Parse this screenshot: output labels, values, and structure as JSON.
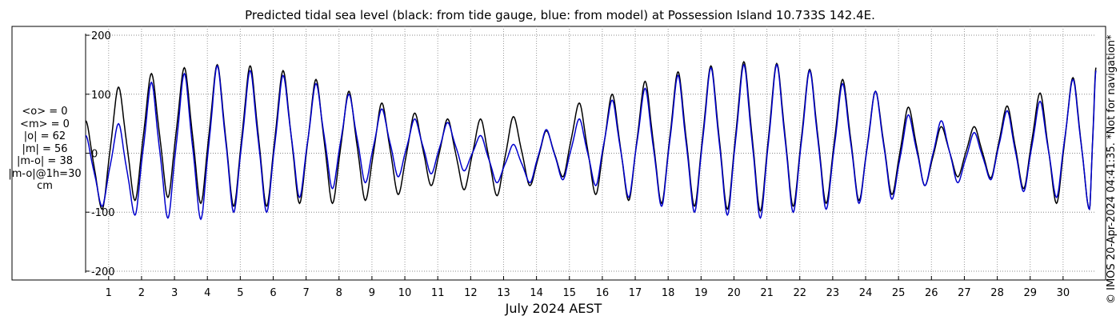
{
  "chart_data": {
    "type": "line",
    "title": "Predicted tidal sea level (black: from tide gauge, blue: from model) at Possession Island 10.733S 142.4E.",
    "xlabel": "July 2024 AEST",
    "ylabel": "",
    "unit": "cm",
    "xlim": [
      0.3,
      31.0
    ],
    "ylim": [
      -215,
      215
    ],
    "y_ticks": [
      -200,
      -100,
      0,
      100,
      200
    ],
    "x_ticks": [
      1,
      2,
      3,
      4,
      5,
      6,
      7,
      8,
      9,
      10,
      11,
      12,
      13,
      14,
      15,
      16,
      17,
      18,
      19,
      20,
      21,
      22,
      23,
      24,
      25,
      26,
      27,
      28,
      29,
      30
    ],
    "grid": true,
    "legend": "none",
    "statistics": [
      "<o> = 0",
      "<m> = 0",
      "|o| = 62",
      "|m| = 56",
      "|m-o| = 38",
      "|m-o|@1h=30",
      "cm"
    ],
    "series": [
      {
        "color": "#000000",
        "x": [
          0.3,
          0.8,
          1.3,
          1.8,
          2.3,
          2.8,
          3.3,
          3.8,
          4.3,
          4.8,
          5.3,
          5.8,
          6.3,
          6.8,
          7.3,
          7.8,
          8.3,
          8.8,
          9.3,
          9.8,
          10.3,
          10.8,
          11.3,
          11.8,
          12.3,
          12.8,
          13.3,
          13.8,
          14.3,
          14.8,
          15.3,
          15.8,
          16.3,
          16.8,
          17.3,
          17.8,
          18.3,
          18.8,
          19.3,
          19.8,
          20.3,
          20.8,
          21.3,
          21.8,
          22.3,
          22.8,
          23.3,
          23.8,
          24.3,
          24.8,
          25.3,
          25.8,
          26.3,
          26.8,
          27.3,
          27.8,
          28.3,
          28.8,
          29.3,
          29.8,
          30.3,
          30.8,
          31.0
        ],
        "y": [
          55,
          -95,
          112,
          -80,
          135,
          -75,
          145,
          -85,
          150,
          -90,
          148,
          -90,
          140,
          -85,
          125,
          -85,
          105,
          -80,
          85,
          -70,
          68,
          -55,
          58,
          -62,
          58,
          -72,
          62,
          -55,
          38,
          -40,
          85,
          -70,
          100,
          -80,
          122,
          -85,
          138,
          -90,
          148,
          -95,
          155,
          -98,
          152,
          -90,
          142,
          -85,
          125,
          -80,
          105,
          -70,
          78,
          -55,
          45,
          -40,
          45,
          -42,
          80,
          -60,
          102,
          -85,
          128,
          -95,
          145
        ]
      },
      {
        "color": "#0000cc",
        "x": [
          0.3,
          0.8,
          1.3,
          1.8,
          2.3,
          2.8,
          3.3,
          3.8,
          4.3,
          4.8,
          5.3,
          5.8,
          6.3,
          6.8,
          7.3,
          7.8,
          8.3,
          8.8,
          9.3,
          9.8,
          10.3,
          10.8,
          11.3,
          11.8,
          12.3,
          12.8,
          13.3,
          13.8,
          14.3,
          14.8,
          15.3,
          15.8,
          16.3,
          16.8,
          17.3,
          17.8,
          18.3,
          18.8,
          19.3,
          19.8,
          20.3,
          20.8,
          21.3,
          21.8,
          22.3,
          22.8,
          23.3,
          23.8,
          24.3,
          24.8,
          25.3,
          25.8,
          26.3,
          26.8,
          27.3,
          27.8,
          28.3,
          28.8,
          29.3,
          29.8,
          30.3,
          30.8,
          31.0
        ],
        "y": [
          30,
          -90,
          50,
          -105,
          120,
          -110,
          135,
          -112,
          148,
          -100,
          140,
          -100,
          132,
          -75,
          118,
          -60,
          100,
          -50,
          75,
          -40,
          58,
          -35,
          52,
          -30,
          30,
          -50,
          15,
          -50,
          40,
          -45,
          58,
          -55,
          90,
          -75,
          110,
          -90,
          132,
          -100,
          145,
          -105,
          150,
          -110,
          150,
          -100,
          140,
          -95,
          118,
          -85,
          105,
          -78,
          65,
          -55,
          55,
          -50,
          35,
          -45,
          72,
          -65,
          88,
          -75,
          125,
          -95,
          140
        ]
      }
    ]
  },
  "side_labels": {
    "copyright": "© IMOS 20-Apr-2024 04:41:35. *Not for navigation*"
  }
}
